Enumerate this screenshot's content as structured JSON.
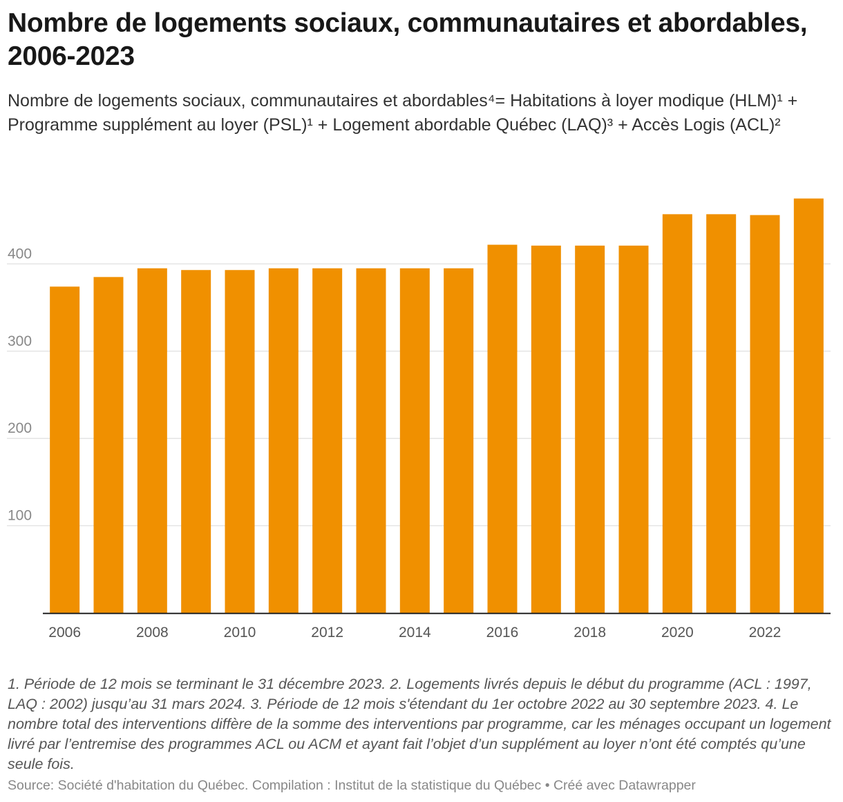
{
  "chart_data": {
    "type": "bar",
    "title": "Nombre de logements sociaux, communautaires et abordables, 2006-2023",
    "subtitle": "Nombre de logements sociaux, communautaires et abordables⁴= Habitations à loyer modique (HLM)¹ + Programme supplément au loyer (PSL)¹ + Logement abordable Québec (LAQ)³ + Accès Logis (ACL)²",
    "categories": [
      "2006",
      "2007",
      "2008",
      "2009",
      "2010",
      "2011",
      "2012",
      "2013",
      "2014",
      "2015",
      "2016",
      "2017",
      "2018",
      "2019",
      "2020",
      "2021",
      "2022",
      "2023"
    ],
    "x_tick_labels": [
      "2006",
      "2008",
      "2010",
      "2012",
      "2014",
      "2016",
      "2018",
      "2020",
      "2022"
    ],
    "values": [
      374,
      385,
      395,
      393,
      393,
      395,
      395,
      395,
      395,
      395,
      422,
      421,
      421,
      421,
      457,
      457,
      456,
      475
    ],
    "y_ticks": [
      100,
      200,
      300,
      400
    ],
    "ylim": [
      0,
      480
    ],
    "xlabel": "",
    "ylabel": "",
    "grid": true,
    "bar_color": "#f09000",
    "grid_color": "#e4e4e4",
    "axis_color": "#222222",
    "tick_label_color": "#888888"
  },
  "notes": "1. Période de 12 mois se terminant le 31 décembre 2023. 2. Logements livrés depuis le début du programme (ACL : 1997, LAQ : 2002) jusqu’au 31 mars 2024. 3. Période de 12 mois s'étendant du 1er octobre 2022 au 30 septembre 2023. 4. Le nombre total des interventions diffère de la somme des interventions par programme, car les ménages occupant un logement livré par l’entremise des programmes ACL ou ACM et ayant fait l’objet d’un supplément au loyer n’ont été comptés qu’une seule fois.",
  "source": "Source: Société d'habitation du Québec. Compilation : Institut de la statistique du Québec • Créé avec Datawrapper"
}
